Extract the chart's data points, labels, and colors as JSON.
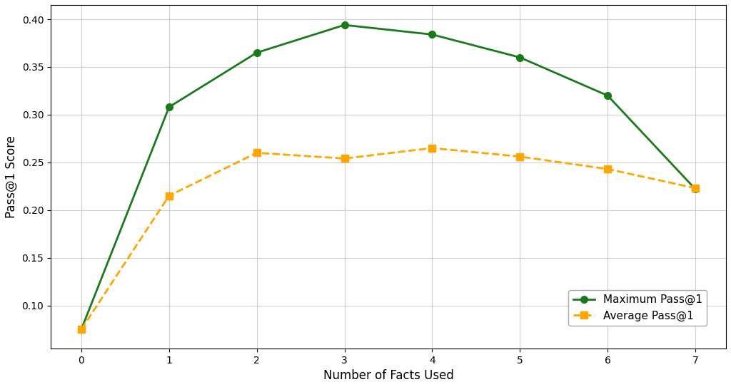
{
  "x": [
    0,
    1,
    2,
    3,
    4,
    5,
    6,
    7
  ],
  "max_pass1": [
    0.075,
    0.308,
    0.365,
    0.394,
    0.384,
    0.36,
    0.32,
    0.222
  ],
  "avg_pass1": [
    0.075,
    0.215,
    0.26,
    0.254,
    0.265,
    0.256,
    0.243,
    0.223
  ],
  "max_color": "#1a7a1a",
  "avg_color": "#ffa500",
  "max_label": "Maximum Pass@1",
  "avg_label": "Average Pass@1",
  "xlabel": "Number of Facts Used",
  "ylabel": "Pass@1 Score",
  "xlim": [
    -0.35,
    7.35
  ],
  "ylim": [
    0.055,
    0.415
  ],
  "yticks": [
    0.1,
    0.15,
    0.2,
    0.25,
    0.3,
    0.35,
    0.4
  ],
  "xticks": [
    0,
    1,
    2,
    3,
    4,
    5,
    6,
    7
  ],
  "plot_bg_color": "#ffffff",
  "fig_bg_color": "#ffffff",
  "grid_color": "#cccccc",
  "spine_color": "#000000",
  "legend_fontsize": 11,
  "axis_fontsize": 12,
  "figsize": [
    10.24,
    5.43
  ],
  "dpi": 100
}
